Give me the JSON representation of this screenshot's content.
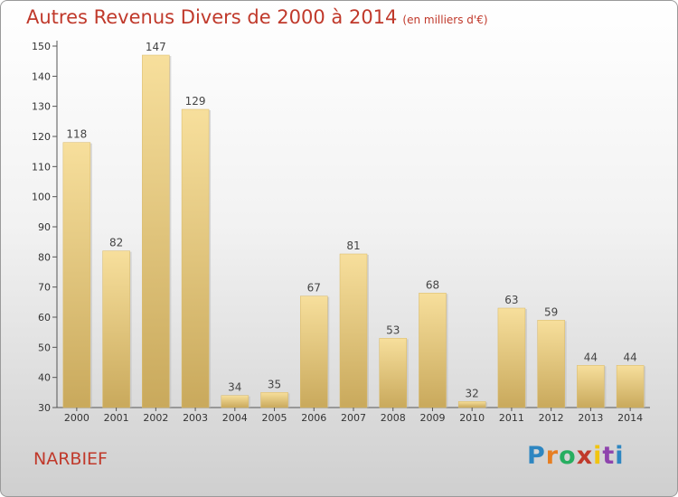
{
  "header": {
    "title": "Autres Revenus Divers de 2000 à 2014",
    "unit": "(en milliers d'€)"
  },
  "footer": {
    "place": "NARBIEF",
    "logo_letters": [
      {
        "ch": "P",
        "color": "#2e86c1"
      },
      {
        "ch": "r",
        "color": "#e67e22"
      },
      {
        "ch": "o",
        "color": "#27ae60"
      },
      {
        "ch": "x",
        "color": "#c0392b"
      },
      {
        "ch": "i",
        "color": "#f1c40f"
      },
      {
        "ch": "t",
        "color": "#8e44ad"
      },
      {
        "ch": "i",
        "color": "#2e86c1"
      }
    ]
  },
  "chart_data": {
    "type": "bar",
    "title": "Autres Revenus Divers de 2000 à 2014",
    "categories": [
      "2000",
      "2001",
      "2002",
      "2003",
      "2004",
      "2005",
      "2006",
      "2007",
      "2008",
      "2009",
      "2010",
      "2011",
      "2012",
      "2013",
      "2014"
    ],
    "values": [
      118,
      82,
      147,
      129,
      34,
      35,
      67,
      81,
      53,
      68,
      32,
      63,
      59,
      44,
      44
    ],
    "ylim": [
      30,
      150
    ],
    "yticks": [
      30,
      40,
      50,
      60,
      70,
      80,
      90,
      100,
      110,
      120,
      130,
      140,
      150
    ],
    "grid": false,
    "bar_color": "#e8c97a",
    "title_color": "#c0392b"
  }
}
